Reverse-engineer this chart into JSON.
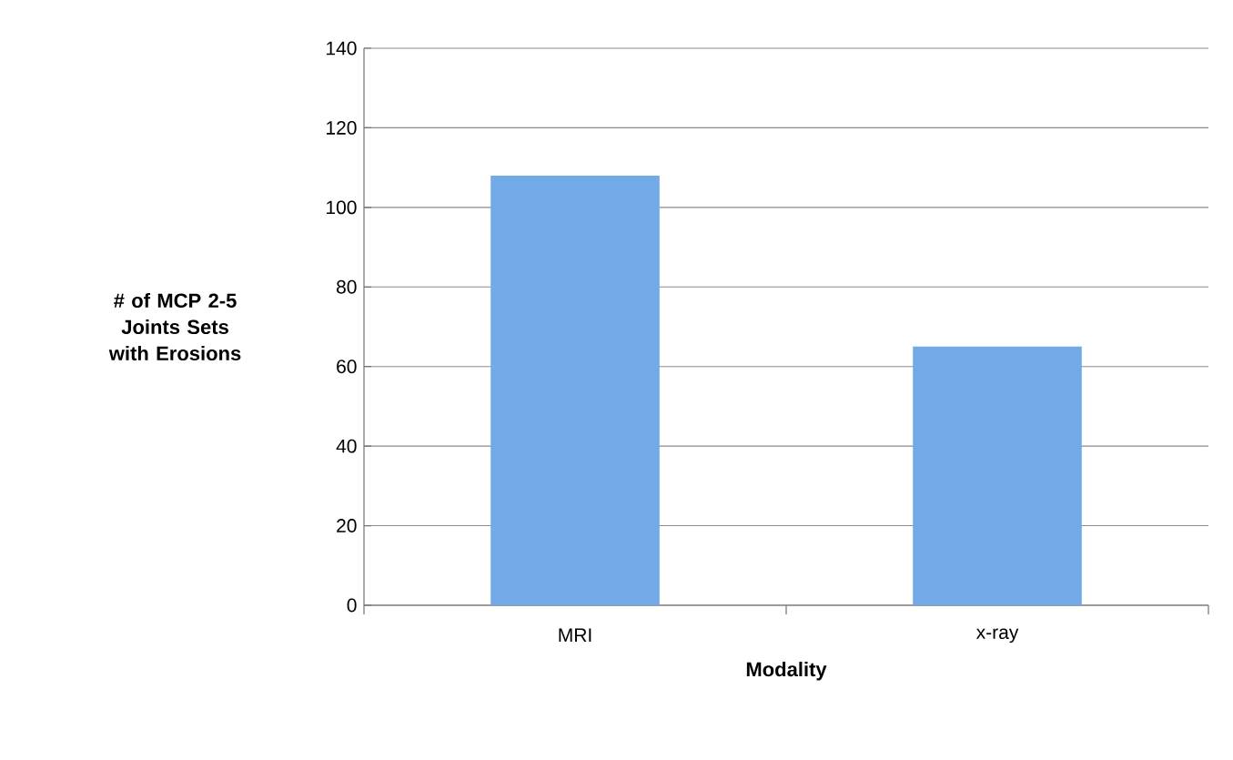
{
  "chart_data": {
    "type": "bar",
    "xlabel": "Modality",
    "ylabel": "# of MCP 2-5 Joints Sets with Erosions",
    "categories": [
      "MRI",
      "x-ray"
    ],
    "values": [
      108,
      65
    ],
    "color": "#72aae8",
    "ylim": [
      0,
      140
    ],
    "yticks": [
      0,
      20,
      40,
      60,
      80,
      100,
      120,
      140
    ],
    "grid": "y"
  }
}
